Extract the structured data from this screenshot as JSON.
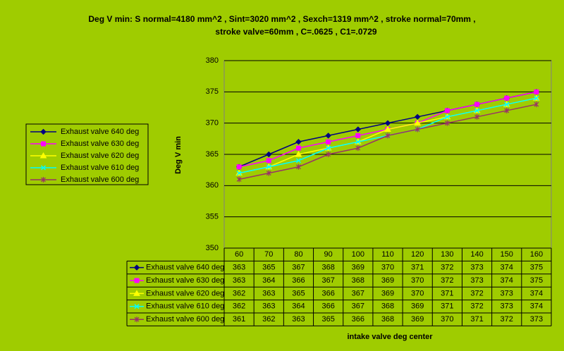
{
  "chart_data": {
    "type": "line",
    "title": [
      "Deg  V  min:  S normal=4180 mm^2  , Sint=3020 mm^2  , Sexch=1319 mm^2 ,  stroke normal=70mm ,",
      "stroke valve=60mm  , C=.0625 , C1=.0729"
    ],
    "y_label": "Deg V min",
    "x_label": "intake valve  deg center",
    "categories": [
      60,
      70,
      80,
      90,
      100,
      110,
      120,
      130,
      140,
      150,
      160
    ],
    "ylim": [
      350,
      380
    ],
    "yticks": [
      350,
      355,
      360,
      365,
      370,
      375,
      380
    ],
    "grid": true,
    "legend": "left",
    "series": [
      {
        "name": "Exhaust valve 640 deg",
        "color": "#000080",
        "marker": "diamond",
        "values": [
          363,
          365,
          367,
          368,
          369,
          370,
          371,
          372,
          373,
          374,
          375
        ]
      },
      {
        "name": "Exhaust valve 630 deg",
        "color": "#ff00ff",
        "marker": "square",
        "values": [
          363,
          364,
          366,
          367,
          368,
          369,
          370,
          372,
          373,
          374,
          375
        ]
      },
      {
        "name": "Exhaust valve 620 deg",
        "color": "#ffff00",
        "marker": "triangle",
        "values": [
          362,
          363,
          365,
          366,
          367,
          369,
          370,
          371,
          372,
          373,
          374
        ]
      },
      {
        "name": "Exhaust valve 610 deg",
        "color": "#00ffff",
        "marker": "cross",
        "values": [
          362,
          363,
          364,
          366,
          367,
          368,
          369,
          371,
          372,
          373,
          374
        ]
      },
      {
        "name": "Exhaust valve 600 deg",
        "color": "#993366",
        "marker": "star",
        "values": [
          361,
          362,
          363,
          365,
          366,
          368,
          369,
          370,
          371,
          372,
          373
        ]
      }
    ]
  }
}
